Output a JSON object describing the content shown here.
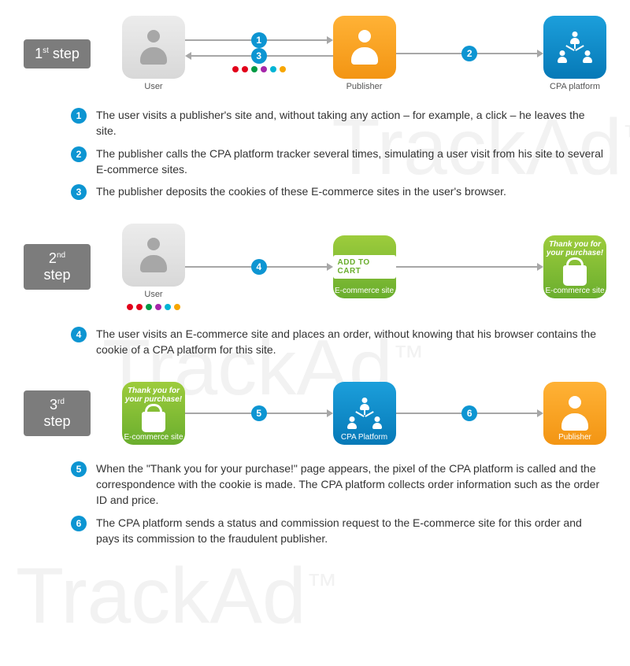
{
  "watermark": "TrackAd",
  "watermark_tm": "™",
  "watermark_color": "#f2f2f2",
  "colors": {
    "step_label_bg": "#7c7c7c",
    "badge_bg": "#0d95d2",
    "arrow": "#a7a7a7",
    "node_gray": [
      "#ececec",
      "#d8d8d8"
    ],
    "node_orange": [
      "#ffb236",
      "#f39513"
    ],
    "node_blue": [
      "#1c9fdb",
      "#0679b7"
    ],
    "node_green": [
      "#9dcc3c",
      "#6aae2e"
    ],
    "text": "#333333"
  },
  "cookie_dots": [
    "#e2001a",
    "#e2001a",
    "#009a44",
    "#a626aa",
    "#00b4d5",
    "#f7a600"
  ],
  "steps": [
    {
      "label_num": "1",
      "label_suffix": "st",
      "label_word": "step",
      "nodes": {
        "user": "User",
        "publisher": "Publisher",
        "cpa": "CPA platform"
      },
      "arrows": {
        "a1": "1",
        "a2": "2",
        "a3": "3"
      },
      "desc": [
        {
          "n": "1",
          "t": "The user visits a publisher's site and, without taking any action – for example, a click – he leaves the site."
        },
        {
          "n": "2",
          "t": "The publisher calls the CPA platform tracker several times, simulating a user visit from his site to several E-commerce sites."
        },
        {
          "n": "3",
          "t": "The publisher deposits the cookies of these E-commerce sites in the user's browser."
        }
      ]
    },
    {
      "label_num": "2",
      "label_suffix": "nd",
      "label_word": "step",
      "nodes": {
        "user": "User",
        "ecom1": "E-commerce site",
        "ecom2": "E-commerce site",
        "add_cart": "ADD TO CART",
        "thank_l1": "Thank you for",
        "thank_l2": "your purchase!"
      },
      "arrows": {
        "a4": "4"
      },
      "desc": [
        {
          "n": "4",
          "t": "The user visits an E-commerce site and places an order, without knowing that his browser contains the cookie of a CPA platform for this site."
        }
      ]
    },
    {
      "label_num": "3",
      "label_suffix": "rd",
      "label_word": "step",
      "nodes": {
        "ecom": "E-commerce site",
        "thank_l1": "Thank you for",
        "thank_l2": "your purchase!",
        "cpa": "CPA Platform",
        "publisher": "Publisher"
      },
      "arrows": {
        "a5": "5",
        "a6": "6"
      },
      "desc": [
        {
          "n": "5",
          "t": "When the \"Thank you for your purchase!\" page appears, the pixel of the CPA platform is called and the correspondence with the cookie is made. The CPA platform collects order information such as the order ID and price."
        },
        {
          "n": "6",
          "t": "The CPA platform sends a status and commission request to the E-commerce site for this order and pays its commission to the fraudulent publisher."
        }
      ]
    }
  ]
}
